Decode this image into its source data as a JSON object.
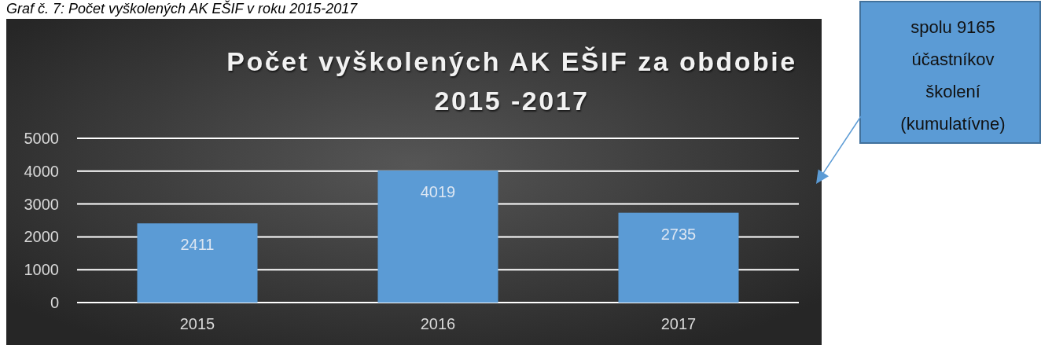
{
  "chart_data": {
    "type": "bar",
    "title": "Počet vyškolených AK EŠIF za obdobie 2015 -2017",
    "categories": [
      "2015",
      "2016",
      "2017"
    ],
    "values": [
      2411,
      4019,
      2735
    ],
    "color": "#5b9bd5",
    "ylim": [
      0,
      5000
    ],
    "yticks": [
      0,
      1000,
      2000,
      3000,
      4000,
      5000
    ],
    "grid": true,
    "data_labels": true,
    "annotations": [
      "Graf č. 7: Počet vyškolených AK EŠIF v roku 2015-2017",
      "spolu 9165\núčastníkov\nškolení\n(kumulatívne)"
    ]
  }
}
